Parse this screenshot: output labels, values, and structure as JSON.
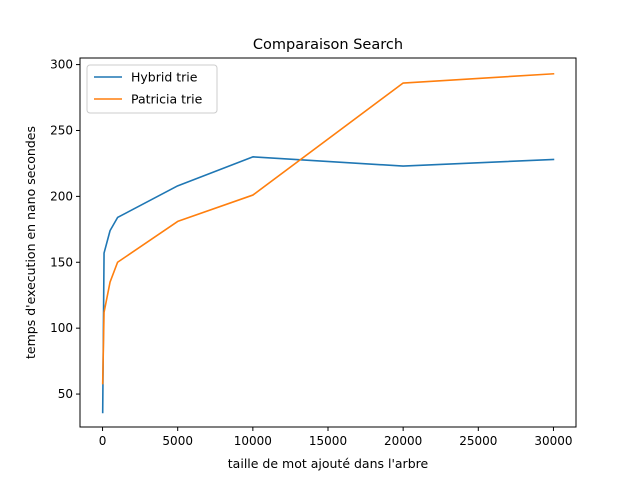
{
  "chart_data": {
    "type": "line",
    "title": "Comparaison Search",
    "xlabel": "taille de mot ajouté dans l'arbre",
    "ylabel": "temps d'execution en nano secondes",
    "xlim": [
      -1500,
      31500
    ],
    "ylim": [
      25,
      305
    ],
    "xticks": [
      0,
      5000,
      10000,
      15000,
      20000,
      25000,
      30000
    ],
    "xtick_labels": [
      "0",
      "5000",
      "10000",
      "15000",
      "20000",
      "25000",
      "30000"
    ],
    "yticks": [
      50,
      100,
      150,
      200,
      250,
      300
    ],
    "ytick_labels": [
      "50",
      "100",
      "150",
      "200",
      "250",
      "300"
    ],
    "grid": false,
    "legend_position": "upper-left",
    "series": [
      {
        "name": "Hybrid trie",
        "color": "#1f77b4",
        "x": [
          10,
          100,
          500,
          1000,
          5000,
          10000,
          20000,
          30000
        ],
        "y": [
          36,
          157,
          174,
          184,
          208,
          230,
          223,
          228
        ]
      },
      {
        "name": "Patricia trie",
        "color": "#ff7f0e",
        "x": [
          10,
          100,
          500,
          1000,
          5000,
          10000,
          20000,
          30000
        ],
        "y": [
          58,
          112,
          135,
          150,
          181,
          201,
          286,
          293
        ]
      }
    ]
  }
}
